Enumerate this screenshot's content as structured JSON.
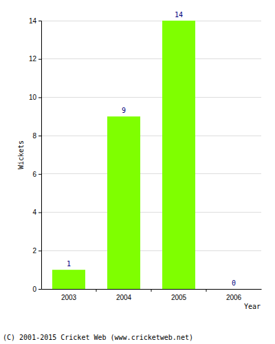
{
  "chart_data": {
    "type": "bar",
    "categories": [
      "2003",
      "2004",
      "2005",
      "2006"
    ],
    "values": [
      1,
      9,
      14,
      0
    ],
    "color": "#7fff00",
    "x_label": "Year",
    "y_label": "Wickets",
    "ylim": [
      0,
      14
    ],
    "yticks": [
      0,
      2,
      4,
      6,
      8,
      10,
      12,
      14
    ],
    "grid": true,
    "data_labels": true,
    "annotations": [
      "(C) 2001-2015 Cricket Web (www.cricketweb.net)"
    ]
  }
}
